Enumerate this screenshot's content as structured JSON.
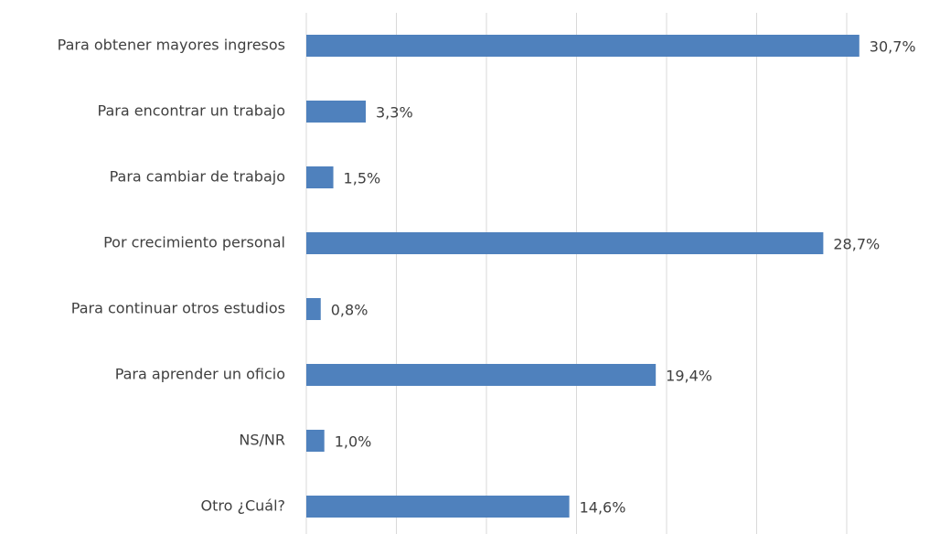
{
  "chart_data": {
    "type": "bar",
    "orientation": "horizontal",
    "categories": [
      "Para obtener mayores ingresos",
      "Para encontrar un trabajo",
      "Para cambiar de trabajo",
      "Por crecimiento personal",
      "Para continuar otros estudios",
      "Para aprender un oficio",
      "NS/NR",
      "Otro ¿Cuál?"
    ],
    "values": [
      30.7,
      3.3,
      1.5,
      28.7,
      0.8,
      19.4,
      1.0,
      14.6
    ],
    "value_labels": [
      "30,7%",
      "3,3%",
      "1,5%",
      "28,7%",
      "0,8%",
      "19,4%",
      "1,0%",
      "14,6%"
    ],
    "color": "#4f81bd",
    "xlim": [
      0,
      33
    ],
    "xticks": [
      0,
      5,
      10,
      15,
      20,
      25,
      30
    ],
    "grid": true
  }
}
